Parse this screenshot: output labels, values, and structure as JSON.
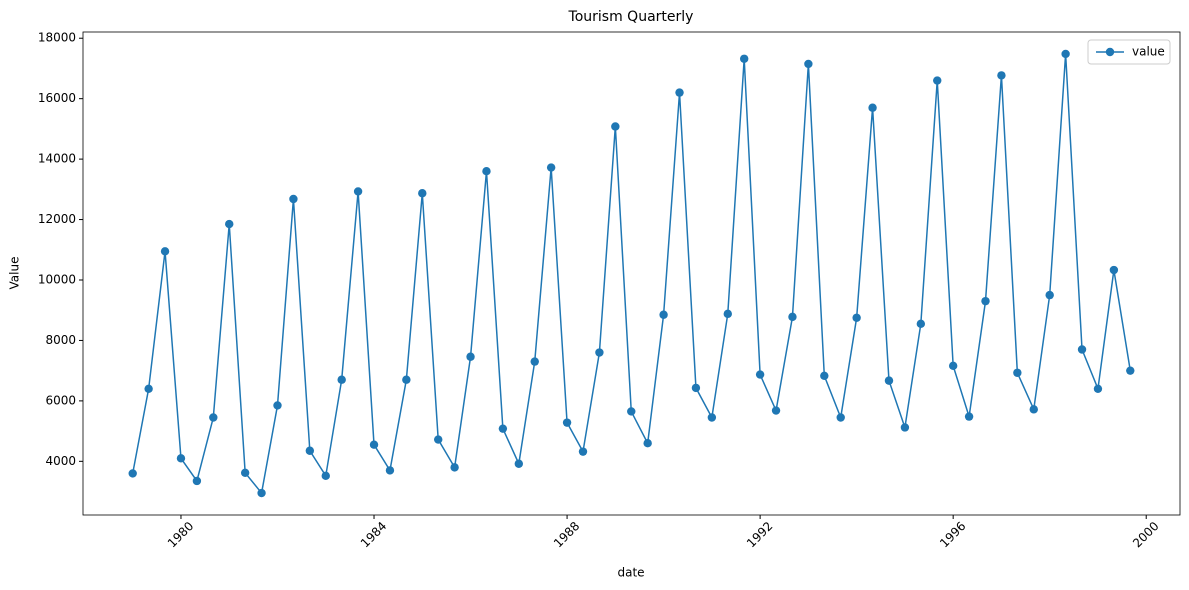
{
  "chart_data": {
    "type": "line",
    "title": "Tourism Quarterly",
    "x_label": "date",
    "y_label": "Value",
    "x": [
      1979,
      1979.33,
      1979.67,
      1980,
      1980.33,
      1980.67,
      1981,
      1981.33,
      1981.67,
      1982,
      1982.33,
      1982.67,
      1983,
      1983.33,
      1983.67,
      1984,
      1984.33,
      1984.67,
      1985,
      1985.33,
      1985.67,
      1986,
      1986.33,
      1986.67,
      1987,
      1987.33,
      1987.67,
      1988,
      1988.33,
      1988.67,
      1989,
      1989.33,
      1989.67,
      1990,
      1990.33,
      1990.67,
      1991,
      1991.33,
      1991.67,
      1992,
      1992.33,
      1992.67,
      1993,
      1993.33,
      1993.67,
      1994,
      1994.33,
      1994.67,
      1995,
      1995.33,
      1995.67,
      1996,
      1996.33,
      1996.67,
      1997,
      1997.33,
      1997.67,
      1998,
      1998.33,
      1998.67,
      1999,
      1999.33,
      1999.67
    ],
    "series": [
      {
        "name": "value",
        "color": "#1f77b4",
        "values": [
          3600,
          6400,
          10950,
          4100,
          3350,
          5450,
          11850,
          3620,
          2950,
          5850,
          12680,
          4350,
          3520,
          6700,
          12930,
          4550,
          3700,
          6700,
          12870,
          4720,
          3800,
          7460,
          13600,
          5080,
          3920,
          7300,
          13720,
          5280,
          4320,
          7600,
          15080,
          5650,
          4600,
          8850,
          16200,
          6430,
          5450,
          8880,
          17320,
          6870,
          5680,
          8780,
          17150,
          6830,
          5450,
          8750,
          15700,
          6670,
          5120,
          8550,
          16600,
          7160,
          5480,
          9300,
          16770,
          6930,
          5720,
          9500,
          17480,
          7700,
          6400,
          10330,
          7000
        ]
      }
    ],
    "xlim": [
      1977.97,
      2000.7
    ],
    "xticks": [
      1980,
      1984,
      1988,
      1992,
      1996,
      2000
    ],
    "ylim": [
      2224,
      18206
    ],
    "yticks": [
      4000,
      6000,
      8000,
      10000,
      12000,
      14000,
      16000,
      18000
    ],
    "grid": false,
    "legend": "upper right"
  }
}
